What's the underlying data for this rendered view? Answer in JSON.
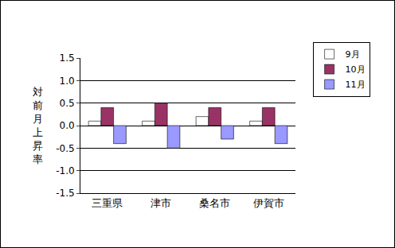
{
  "chart_data": {
    "type": "bar",
    "y_label": "対前月上昇率",
    "categories": [
      "三重県",
      "津市",
      "桑名市",
      "伊賀市"
    ],
    "series": [
      {
        "name": "9月",
        "color": "#ffffff",
        "values": [
          0.1,
          0.1,
          0.2,
          0.1
        ]
      },
      {
        "name": "10月",
        "color": "#993366",
        "values": [
          0.4,
          0.5,
          0.4,
          0.4
        ]
      },
      {
        "name": "11月",
        "color": "#9999ff",
        "values": [
          -0.4,
          -0.5,
          -0.3,
          -0.4
        ]
      }
    ],
    "ylim": [
      -1.5,
      1.5
    ],
    "yticks": [
      {
        "value": -1.5,
        "label": "-1.5"
      },
      {
        "value": -1.0,
        "label": "-1.0"
      },
      {
        "value": -0.5,
        "label": "-0.5"
      },
      {
        "value": 0,
        "label": "0.0"
      },
      {
        "value": 0.5,
        "label": "0.5"
      },
      {
        "value": 1.0,
        "label": "1.0"
      },
      {
        "value": 1.5,
        "label": "1.5"
      }
    ],
    "grid": true,
    "legend": "right"
  }
}
